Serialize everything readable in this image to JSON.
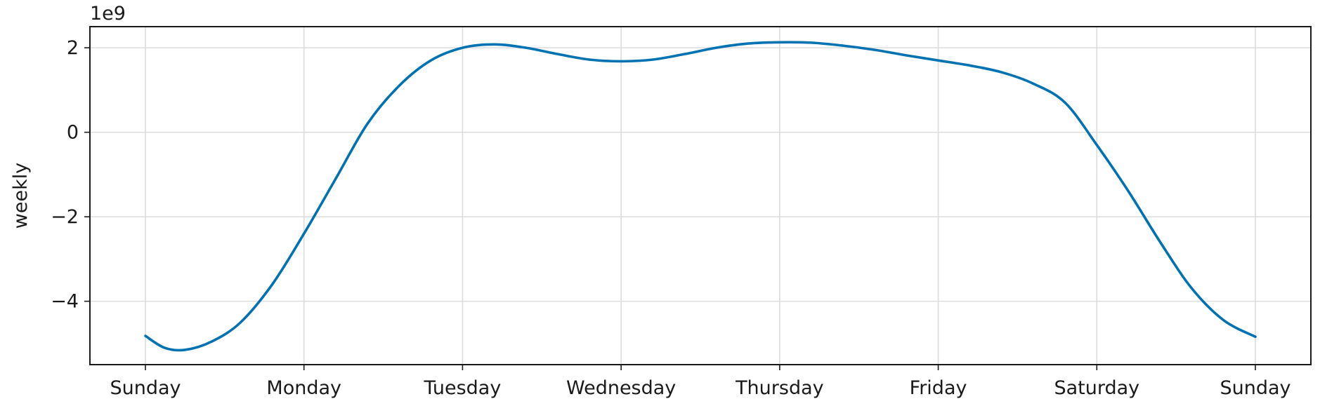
{
  "chart_data": {
    "type": "line",
    "title": "",
    "xlabel": "",
    "ylabel": "weekly",
    "y_offset_label": "1e9",
    "y_scale": 1000000000,
    "x_ticks": [
      {
        "value": 0,
        "label": "Sunday"
      },
      {
        "value": 1,
        "label": "Monday"
      },
      {
        "value": 2,
        "label": "Tuesday"
      },
      {
        "value": 3,
        "label": "Wednesday"
      },
      {
        "value": 4,
        "label": "Thursday"
      },
      {
        "value": 5,
        "label": "Friday"
      },
      {
        "value": 6,
        "label": "Saturday"
      },
      {
        "value": 7,
        "label": "Sunday"
      }
    ],
    "y_ticks": [
      {
        "value": -4,
        "label": "−4"
      },
      {
        "value": -2,
        "label": "−2"
      },
      {
        "value": 0,
        "label": "0"
      },
      {
        "value": 2,
        "label": "2"
      }
    ],
    "xlim": [
      -0.35,
      7.35
    ],
    "ylim": [
      -5.5,
      2.5
    ],
    "grid": true,
    "series": [
      {
        "color": "#0072b2",
        "points": [
          [
            0.0,
            -4.82
          ],
          [
            0.12,
            -5.1
          ],
          [
            0.25,
            -5.15
          ],
          [
            0.42,
            -4.95
          ],
          [
            0.6,
            -4.5
          ],
          [
            0.8,
            -3.6
          ],
          [
            1.0,
            -2.4
          ],
          [
            1.2,
            -1.1
          ],
          [
            1.4,
            0.2
          ],
          [
            1.6,
            1.1
          ],
          [
            1.8,
            1.7
          ],
          [
            2.0,
            2.0
          ],
          [
            2.2,
            2.08
          ],
          [
            2.4,
            2.0
          ],
          [
            2.6,
            1.85
          ],
          [
            2.8,
            1.72
          ],
          [
            3.0,
            1.68
          ],
          [
            3.2,
            1.72
          ],
          [
            3.4,
            1.85
          ],
          [
            3.6,
            2.0
          ],
          [
            3.8,
            2.1
          ],
          [
            4.0,
            2.13
          ],
          [
            4.2,
            2.12
          ],
          [
            4.4,
            2.05
          ],
          [
            4.6,
            1.95
          ],
          [
            4.8,
            1.82
          ],
          [
            5.0,
            1.7
          ],
          [
            5.2,
            1.58
          ],
          [
            5.4,
            1.42
          ],
          [
            5.6,
            1.15
          ],
          [
            5.8,
            0.7
          ],
          [
            6.0,
            -0.3
          ],
          [
            6.2,
            -1.4
          ],
          [
            6.4,
            -2.6
          ],
          [
            6.6,
            -3.7
          ],
          [
            6.8,
            -4.45
          ],
          [
            7.0,
            -4.84
          ]
        ]
      }
    ]
  }
}
